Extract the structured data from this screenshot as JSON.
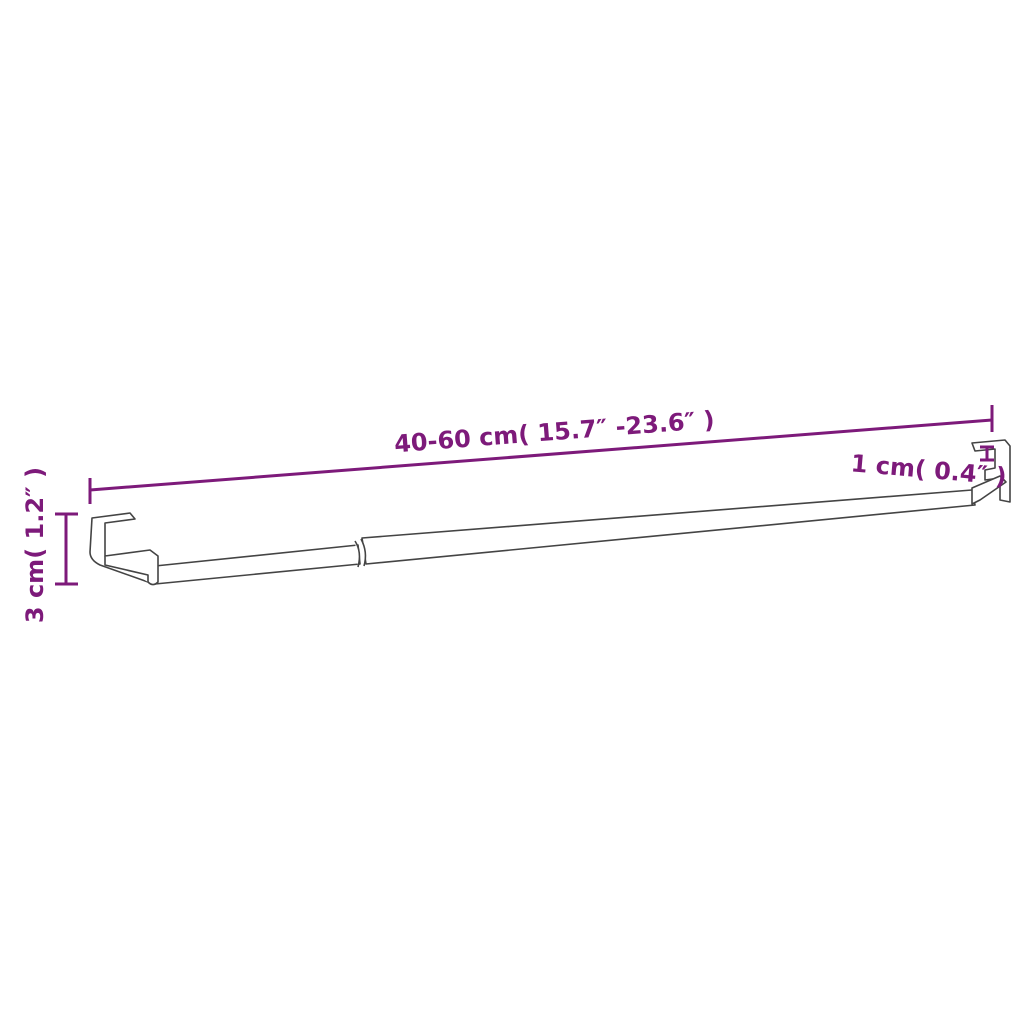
{
  "dimensions": {
    "length_label": "40-60 cm( 15.7″ -23.6″ )",
    "height_label": "3 cm( 1.2″ )",
    "depth_label": "1 cm( 0.4″ )"
  },
  "colors": {
    "dimension": "#7d1a7a",
    "outline": "#444444"
  }
}
